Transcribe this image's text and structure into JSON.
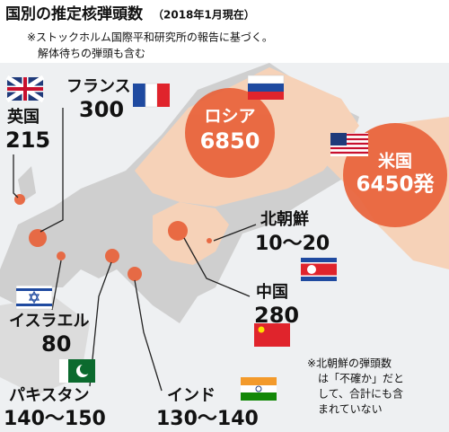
{
  "header": {
    "title": "国別の推定核弾頭数",
    "date": "（2018年1月現在）",
    "note": [
      "※ストックホルム国際平和研究所の報告に基づく。",
      "解体待ちの弾頭も含む"
    ]
  },
  "countries": [
    {
      "name": "英国",
      "value": "215"
    },
    {
      "name": "フランス",
      "value": "300"
    },
    {
      "name": "ロシア",
      "value": "6850"
    },
    {
      "name": "米国",
      "value": "6450発"
    },
    {
      "name": "北朝鮮",
      "value": "10〜20"
    },
    {
      "name": "中国",
      "value": "280"
    },
    {
      "name": "イスラエル",
      "value": "80"
    },
    {
      "name": "パキスタン",
      "value": "140〜150"
    },
    {
      "name": "インド",
      "value": "130〜140"
    }
  ],
  "footnote": [
    "※北朝鮮の弾頭数",
    "は「不確か」だと",
    "して、合計にも含",
    "まれていない"
  ]
}
